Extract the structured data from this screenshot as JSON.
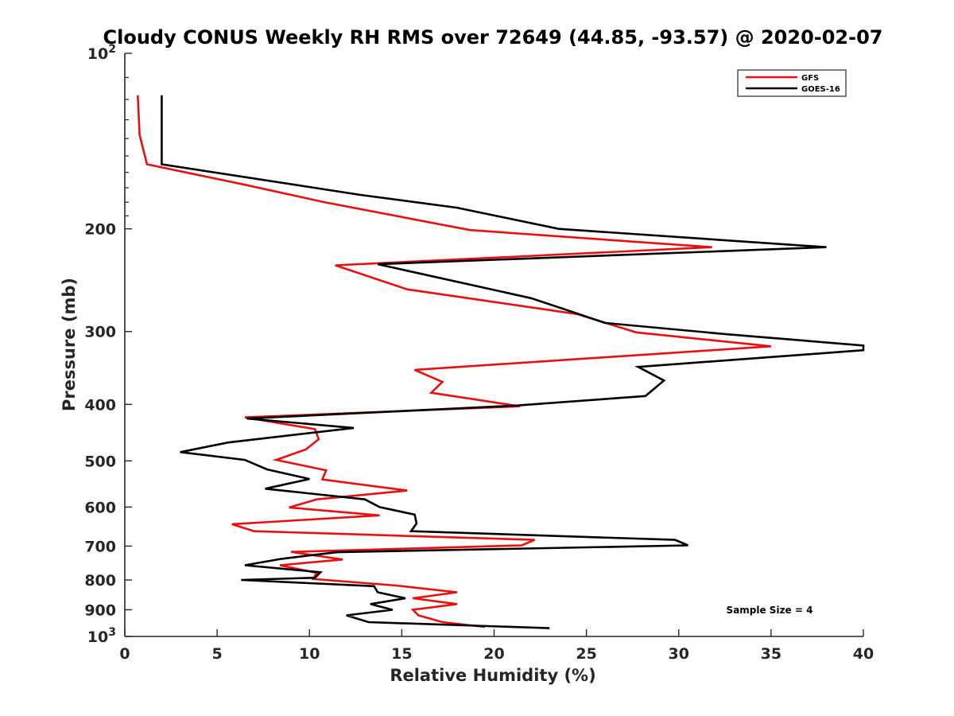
{
  "chart_data": {
    "type": "line",
    "title": "Cloudy CONUS Weekly RH RMS over 72649 (44.85, -93.57) @ 2020-02-07",
    "xlabel": "Relative Humidity (%)",
    "ylabel": "Pressure (mb)",
    "xlim": [
      0,
      40
    ],
    "ylim": [
      100,
      1000
    ],
    "y_scale": "log",
    "y_reversed": true,
    "grid": false,
    "legend_position": "top-right",
    "x_ticks": [
      "0",
      "5",
      "10",
      "15",
      "20",
      "25",
      "30",
      "35",
      "40"
    ],
    "y_ticks": [
      {
        "value": 100,
        "base": "10",
        "exp": "2"
      },
      {
        "value": 200,
        "label": "200"
      },
      {
        "value": 300,
        "label": "300"
      },
      {
        "value": 400,
        "label": "400"
      },
      {
        "value": 500,
        "label": "500"
      },
      {
        "value": 600,
        "label": "600"
      },
      {
        "value": 700,
        "label": "700"
      },
      {
        "value": 800,
        "label": "800"
      },
      {
        "value": 900,
        "label": "900"
      },
      {
        "value": 1000,
        "base": "10",
        "exp": "3"
      }
    ],
    "annotation": "Sample Size = 4",
    "series": [
      {
        "name": "GFS",
        "color": "#e81010",
        "points": [
          [
            0.7,
            118
          ],
          [
            0.8,
            138
          ],
          [
            1.2,
            155
          ],
          [
            6.5,
            168
          ],
          [
            10.8,
            180
          ],
          [
            18.7,
            201
          ],
          [
            31.8,
            215
          ],
          [
            11.4,
            231
          ],
          [
            15.3,
            254
          ],
          [
            24.5,
            280
          ],
          [
            27.7,
            301
          ],
          [
            35.0,
            318
          ],
          [
            15.7,
            349
          ],
          [
            17.2,
            366
          ],
          [
            16.6,
            382
          ],
          [
            21.4,
            403
          ],
          [
            6.5,
            421
          ],
          [
            10.3,
            441
          ],
          [
            10.5,
            459
          ],
          [
            9.8,
            478
          ],
          [
            8.2,
            498
          ],
          [
            10.9,
            519
          ],
          [
            10.7,
            538
          ],
          [
            15.3,
            562
          ],
          [
            10.4,
            582
          ],
          [
            8.9,
            601
          ],
          [
            13.8,
            620
          ],
          [
            5.8,
            642
          ],
          [
            7.0,
            660
          ],
          [
            22.2,
            683
          ],
          [
            21.5,
            698
          ],
          [
            9.0,
            716
          ],
          [
            11.8,
            738
          ],
          [
            8.4,
            755
          ],
          [
            10.4,
            778
          ],
          [
            10.2,
            797
          ],
          [
            14.7,
            818
          ],
          [
            18.0,
            840
          ],
          [
            15.6,
            860
          ],
          [
            18.0,
            880
          ],
          [
            15.6,
            900
          ],
          [
            15.9,
            920
          ],
          [
            17.2,
            945
          ],
          [
            19.5,
            963
          ]
        ]
      },
      {
        "name": "GOES-16",
        "color": "#000000",
        "points": [
          [
            2.0,
            118
          ],
          [
            2.0,
            155
          ],
          [
            12.8,
            175
          ],
          [
            18.0,
            184
          ],
          [
            23.5,
            200
          ],
          [
            38.0,
            215
          ],
          [
            13.7,
            230
          ],
          [
            22.0,
            263
          ],
          [
            24.0,
            276
          ],
          [
            26.0,
            290
          ],
          [
            32.5,
            303
          ],
          [
            40.0,
            317
          ],
          [
            40.0,
            323
          ],
          [
            27.8,
            345
          ],
          [
            29.2,
            364
          ],
          [
            28.2,
            387
          ],
          [
            21.1,
            402
          ],
          [
            6.6,
            423
          ],
          [
            12.4,
            439
          ],
          [
            5.6,
            465
          ],
          [
            3.0,
            483
          ],
          [
            6.5,
            498
          ],
          [
            7.7,
            517
          ],
          [
            10.0,
            537
          ],
          [
            7.6,
            558
          ],
          [
            13.0,
            582
          ],
          [
            13.8,
            600
          ],
          [
            15.7,
            618
          ],
          [
            15.8,
            640
          ],
          [
            15.5,
            660
          ],
          [
            29.8,
            683
          ],
          [
            30.5,
            698
          ],
          [
            11.5,
            717
          ],
          [
            8.5,
            736
          ],
          [
            6.5,
            755
          ],
          [
            10.6,
            776
          ],
          [
            10.3,
            793
          ],
          [
            6.3,
            800
          ],
          [
            13.5,
            820
          ],
          [
            13.7,
            840
          ],
          [
            15.2,
            860
          ],
          [
            13.3,
            880
          ],
          [
            14.5,
            900
          ],
          [
            12.0,
            920
          ],
          [
            13.2,
            945
          ],
          [
            23.0,
            968
          ]
        ]
      }
    ]
  }
}
